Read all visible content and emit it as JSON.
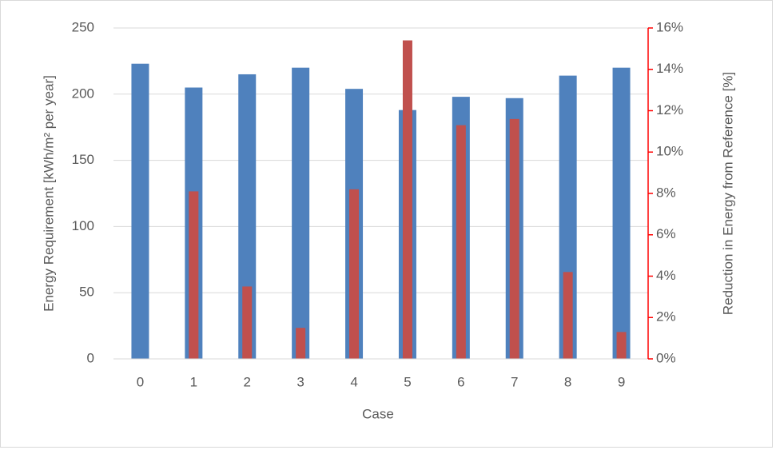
{
  "chart_data": {
    "type": "bar",
    "x_label": "Case",
    "y_label": "Energy Requirement [kWh/m² per year]",
    "y2_label": "Reduction in Energy from Reference [%]",
    "categories": [
      "0",
      "1",
      "2",
      "3",
      "4",
      "5",
      "6",
      "7",
      "8",
      "9"
    ],
    "series": [
      {
        "name": "Energy Requirement",
        "color": "#4f81bd",
        "values": [
          223,
          205,
          215,
          220,
          204,
          188,
          198,
          197,
          214,
          220
        ]
      },
      {
        "name": "Reduction",
        "color": "#c0504d",
        "axis": "y2",
        "values": [
          0,
          8.1,
          3.5,
          1.5,
          8.2,
          15.4,
          11.3,
          11.6,
          4.2,
          1.3
        ]
      }
    ],
    "ylim": [
      0,
      250
    ],
    "yticks": [
      0,
      50,
      100,
      150,
      200,
      250
    ],
    "y2lim": [
      0,
      16
    ],
    "y2ticks": [
      {
        "value": 0,
        "label": "0%"
      },
      {
        "value": 2,
        "label": "2%"
      },
      {
        "value": 4,
        "label": "4%"
      },
      {
        "value": 6,
        "label": "6%"
      },
      {
        "value": 8,
        "label": "8%"
      },
      {
        "value": 10,
        "label": "10%"
      },
      {
        "value": 12,
        "label": "12%"
      },
      {
        "value": 14,
        "label": "14%"
      },
      {
        "value": 16,
        "label": "16%"
      }
    ],
    "y2_color": "#ff0000",
    "grid": true
  }
}
